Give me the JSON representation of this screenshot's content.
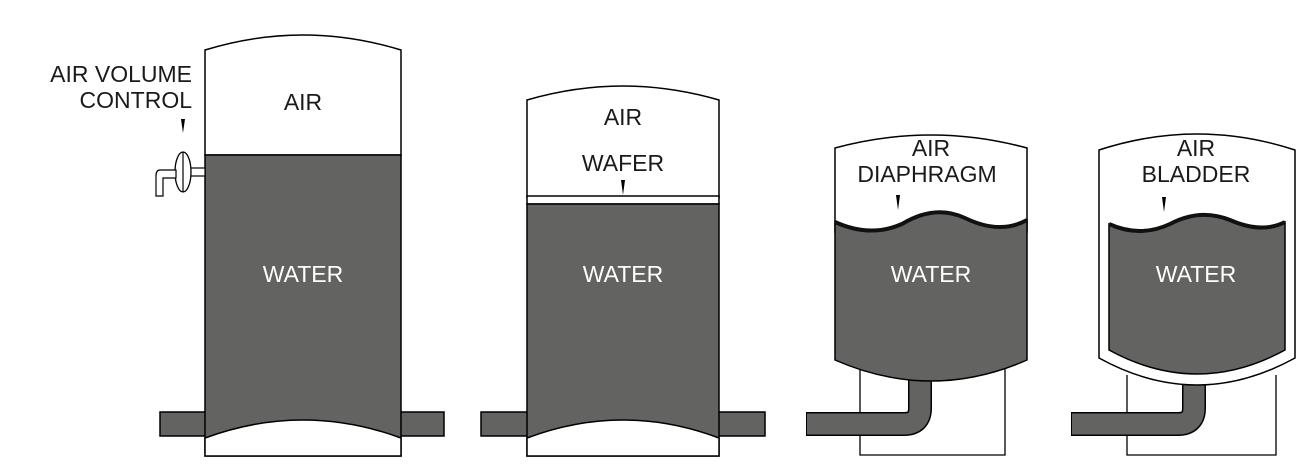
{
  "tanks": [
    {
      "id": "tank-1",
      "labels": {
        "air": "AIR",
        "water": "WATER"
      },
      "side_label_line1": "AIR VOLUME",
      "side_label_line2": "CONTROL"
    },
    {
      "id": "tank-2",
      "labels": {
        "air": "AIR",
        "separator": "WAFER",
        "water": "WATER"
      }
    },
    {
      "id": "tank-3",
      "labels": {
        "air": "AIR",
        "separator": "DIAPHRAGM",
        "water": "WATER"
      }
    },
    {
      "id": "tank-4",
      "labels": {
        "air": "AIR",
        "separator": "BLADDER",
        "water": "WATER"
      }
    }
  ],
  "colors": {
    "water": "#636362",
    "outline": "#000000",
    "air": "#ffffff"
  }
}
